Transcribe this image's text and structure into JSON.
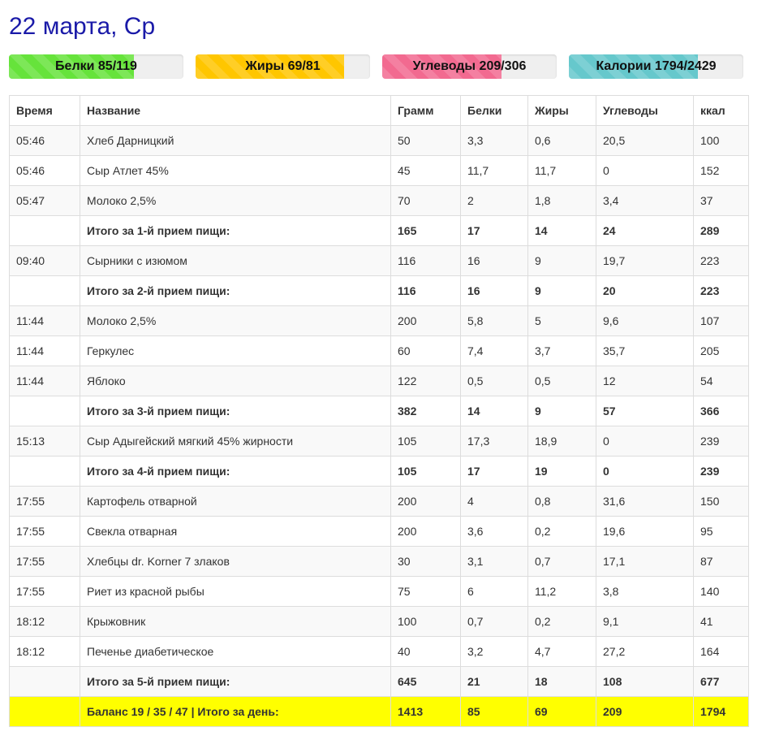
{
  "header": {
    "title": "22 марта, Ср"
  },
  "colors": {
    "title": "#1a1aa8",
    "protein_bar": "#66e33b",
    "fat_bar": "#ffc600",
    "carb_bar": "#f26a90",
    "calorie_bar": "#66c8cc",
    "total_row": "#ffff00"
  },
  "progress": [
    {
      "label": "Белки 85/119",
      "fraction": 0.714,
      "color": "#66e33b"
    },
    {
      "label": "Жиры 69/81",
      "fraction": 0.852,
      "color": "#ffc600"
    },
    {
      "label": "Углеводы 209/306",
      "fraction": 0.683,
      "color": "#f26a90"
    },
    {
      "label": "Калории 1794/2429",
      "fraction": 0.739,
      "color": "#66c8cc"
    }
  ],
  "table": {
    "headers": [
      "Время",
      "Название",
      "Грамм",
      "Белки",
      "Жиры",
      "Углеводы",
      "ккал"
    ],
    "rows": [
      {
        "time": "05:46",
        "name": "Хлеб Дарницкий",
        "grams": "50",
        "protein": "3,3",
        "fat": "0,6",
        "carbs": "20,5",
        "kcal": "100"
      },
      {
        "time": "05:46",
        "name": "Сыр Атлет 45%",
        "grams": "45",
        "protein": "11,7",
        "fat": "11,7",
        "carbs": "0",
        "kcal": "152"
      },
      {
        "time": "05:47",
        "name": "Молоко 2,5%",
        "grams": "70",
        "protein": "2",
        "fat": "1,8",
        "carbs": "3,4",
        "kcal": "37"
      },
      {
        "time": "",
        "name": "Итого за 1-й прием пищи:",
        "grams": "165",
        "protein": "17",
        "fat": "14",
        "carbs": "24",
        "kcal": "289",
        "subtotal": true
      },
      {
        "time": "09:40",
        "name": "Сырники с изюмом",
        "grams": "116",
        "protein": "16",
        "fat": "9",
        "carbs": "19,7",
        "kcal": "223"
      },
      {
        "time": "",
        "name": "Итого за 2-й прием пищи:",
        "grams": "116",
        "protein": "16",
        "fat": "9",
        "carbs": "20",
        "kcal": "223",
        "subtotal": true
      },
      {
        "time": "11:44",
        "name": "Молоко 2,5%",
        "grams": "200",
        "protein": "5,8",
        "fat": "5",
        "carbs": "9,6",
        "kcal": "107"
      },
      {
        "time": "11:44",
        "name": "Геркулес",
        "grams": "60",
        "protein": "7,4",
        "fat": "3,7",
        "carbs": "35,7",
        "kcal": "205"
      },
      {
        "time": "11:44",
        "name": "Яблоко",
        "grams": "122",
        "protein": "0,5",
        "fat": "0,5",
        "carbs": "12",
        "kcal": "54"
      },
      {
        "time": "",
        "name": "Итого за 3-й прием пищи:",
        "grams": "382",
        "protein": "14",
        "fat": "9",
        "carbs": "57",
        "kcal": "366",
        "subtotal": true
      },
      {
        "time": "15:13",
        "name": "Сыр Адыгейский мягкий 45% жирности",
        "grams": "105",
        "protein": "17,3",
        "fat": "18,9",
        "carbs": "0",
        "kcal": "239"
      },
      {
        "time": "",
        "name": "Итого за 4-й прием пищи:",
        "grams": "105",
        "protein": "17",
        "fat": "19",
        "carbs": "0",
        "kcal": "239",
        "subtotal": true
      },
      {
        "time": "17:55",
        "name": "Картофель отварной",
        "grams": "200",
        "protein": "4",
        "fat": "0,8",
        "carbs": "31,6",
        "kcal": "150"
      },
      {
        "time": "17:55",
        "name": "Свекла отварная",
        "grams": "200",
        "protein": "3,6",
        "fat": "0,2",
        "carbs": "19,6",
        "kcal": "95"
      },
      {
        "time": "17:55",
        "name": "Хлебцы dr. Korner 7 злаков",
        "grams": "30",
        "protein": "3,1",
        "fat": "0,7",
        "carbs": "17,1",
        "kcal": "87"
      },
      {
        "time": "17:55",
        "name": "Риет из красной рыбы",
        "grams": "75",
        "protein": "6",
        "fat": "11,2",
        "carbs": "3,8",
        "kcal": "140"
      },
      {
        "time": "18:12",
        "name": "Крыжовник",
        "grams": "100",
        "protein": "0,7",
        "fat": "0,2",
        "carbs": "9,1",
        "kcal": "41"
      },
      {
        "time": "18:12",
        "name": "Печенье диабетическое",
        "grams": "40",
        "protein": "3,2",
        "fat": "4,7",
        "carbs": "27,2",
        "kcal": "164"
      },
      {
        "time": "",
        "name": "Итого за 5-й прием пищи:",
        "grams": "645",
        "protein": "21",
        "fat": "18",
        "carbs": "108",
        "kcal": "677",
        "subtotal": true
      }
    ],
    "total": {
      "time": "",
      "name": "Баланс 19 / 35 / 47 | Итого за день:",
      "grams": "1413",
      "protein": "85",
      "fat": "69",
      "carbs": "209",
      "kcal": "1794"
    }
  }
}
